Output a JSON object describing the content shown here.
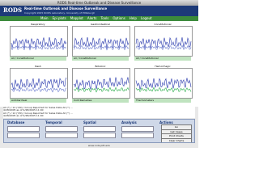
{
  "window": {
    "title": "RODS Real-time Outbreak and Disease Surveillance"
  },
  "header": {
    "logo": "RODS",
    "title": "Real-time Outbreak and Disease Surveillance",
    "copyright": "Copyright 2005 RODS Laboratory, University of Pittsburgh"
  },
  "menu": [
    "Main",
    "Epi plots",
    "Mapplot",
    "Alerts",
    "Tools",
    "Options",
    "Help",
    "Logout"
  ],
  "charts": [
    {
      "title": "Respiratory",
      "caption": "All / Constitutional"
    },
    {
      "title": "Gastrointestinal",
      "caption": "All / Constitutional"
    },
    {
      "title": "Constitutional",
      "caption": "All / Constitutional"
    },
    {
      "title": "Rash",
      "caption": "Antidiarrheal"
    },
    {
      "title": "Botulinic",
      "caption": "Cold Remedies"
    },
    {
      "title": "Hemorrhagic",
      "caption": "Thermometers"
    }
  ],
  "summary": [
    "All (*) / 12 (Y/N) / Group Reported for Sales Date All (*) ...",
    "4/28/2005 as of 4/28/2005 11:00",
    "All (*) / 12 (Y/N) / Group Reported for Sales Date All (*) ...",
    "4/28/2005 as of 4/28/2005 11:00"
  ],
  "panel": {
    "headings": [
      "Database",
      "Temporal",
      "Spatial",
      "Analysis",
      "Actions"
    ],
    "buttons": [
      "Go",
      "Get Cases",
      "Print Charts",
      "Clear Charts"
    ]
  },
  "footer": "www.rods.pitt.edu"
}
